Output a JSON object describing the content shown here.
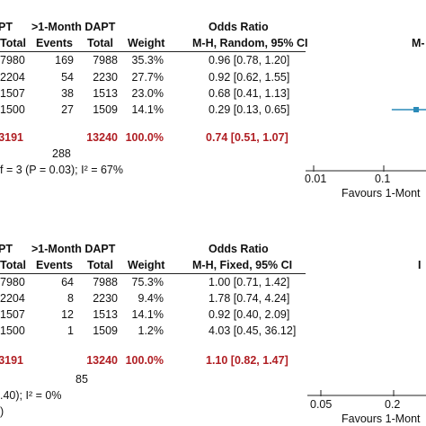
{
  "colors": {
    "total_red": "#b01e23",
    "marker_blue": "#2a8ab8"
  },
  "chart_data": [
    {
      "type": "table",
      "model": "M-H, Random, 95% CI",
      "header": {
        "group1_partial": "PT",
        "group2": ">1-Month DAPT",
        "effect": "Odds Ratio",
        "effect_right_partial": "M-",
        "col_total1": "Total",
        "col_events2": "Events",
        "col_total2": "Total",
        "col_weight": "Weight",
        "col_ci": "M-H, Random, 95% CI"
      },
      "rows": [
        {
          "total1": "7980",
          "events2": "169",
          "total2": "7988",
          "weight": "35.3%",
          "ci": "0.96 [0.78, 1.20]"
        },
        {
          "total1": "2204",
          "events2": "54",
          "total2": "2230",
          "weight": "27.7%",
          "ci": "0.92 [0.62, 1.55]"
        },
        {
          "total1": "1507",
          "events2": "38",
          "total2": "1513",
          "weight": "23.0%",
          "ci": "0.68 [0.41, 1.13]"
        },
        {
          "total1": "1500",
          "events2": "27",
          "total2": "1509",
          "weight": "14.1%",
          "ci": "0.29 [0.13, 0.65]"
        }
      ],
      "total_row": {
        "total1": "3191",
        "total2": "13240",
        "weight": "100.0%",
        "ci": "0.74 [0.51, 1.07]"
      },
      "events_total": "288",
      "heterogeneity": "f = 3 (P = 0.03); I² = 67%",
      "axis": {
        "scale": "log",
        "ticks": [
          "0.01",
          "0.1"
        ],
        "favours": "Favours 1-Mont"
      },
      "estimates": [
        {
          "or": 0.96,
          "lo": 0.78,
          "hi": 1.2
        },
        {
          "or": 0.92,
          "lo": 0.62,
          "hi": 1.55
        },
        {
          "or": 0.68,
          "lo": 0.41,
          "hi": 1.13
        },
        {
          "or": 0.29,
          "lo": 0.13,
          "hi": 0.65
        }
      ]
    },
    {
      "type": "table",
      "model": "M-H, Fixed, 95% CI",
      "header": {
        "group1_partial": "PT",
        "group2": ">1-Month DAPT",
        "effect": "Odds Ratio",
        "effect_right_partial": "I",
        "col_total1": "Total",
        "col_events2": "Events",
        "col_total2": "Total",
        "col_weight": "Weight",
        "col_ci": "M-H, Fixed, 95% CI"
      },
      "rows": [
        {
          "total1": "7980",
          "events2": "64",
          "total2": "7988",
          "weight": "75.3%",
          "ci": "1.00 [0.71, 1.42]"
        },
        {
          "total1": "2204",
          "events2": "8",
          "total2": "2230",
          "weight": "9.4%",
          "ci": "1.78 [0.74, 4.24]"
        },
        {
          "total1": "1507",
          "events2": "12",
          "total2": "1513",
          "weight": "14.1%",
          "ci": "0.92 [0.40, 2.09]"
        },
        {
          "total1": "1500",
          "events2": "1",
          "total2": "1509",
          "weight": "1.2%",
          "ci": "4.03 [0.45, 36.12]"
        }
      ],
      "total_row": {
        "total1": "3191",
        "total2": "13240",
        "weight": "100.0%",
        "ci": "1.10 [0.82, 1.47]"
      },
      "events_total": "85",
      "heterogeneity": ".40); I² = 0%",
      "overall_partial": ")",
      "axis": {
        "scale": "log",
        "ticks": [
          "0.05",
          "0.2"
        ],
        "favours": "Favours 1-Mont"
      }
    }
  ]
}
